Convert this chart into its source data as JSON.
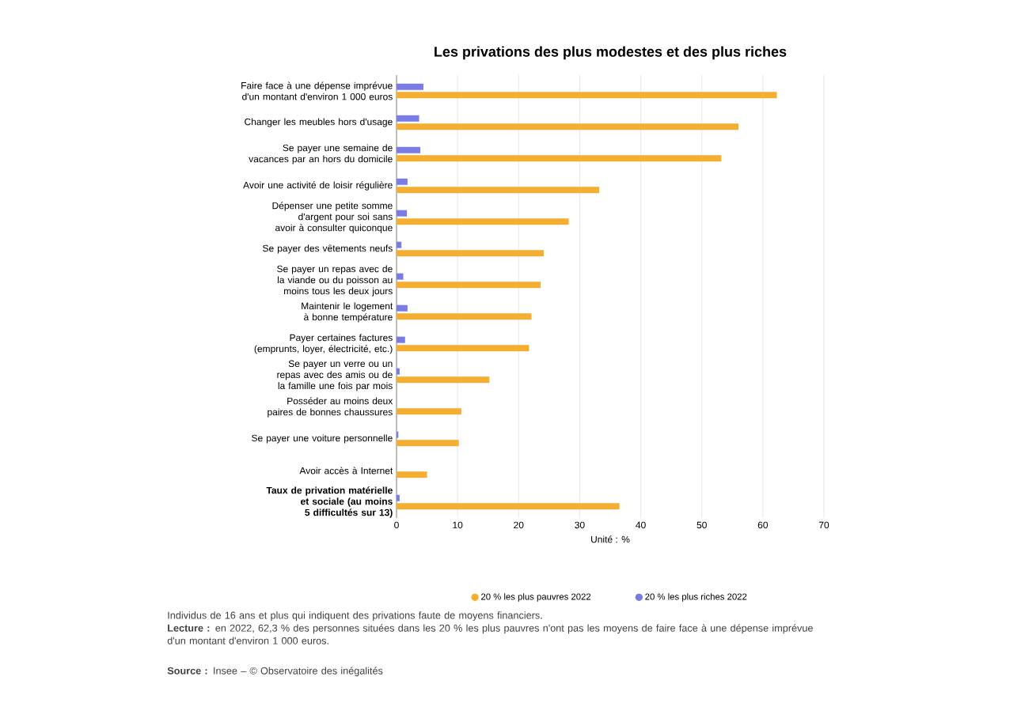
{
  "chart_data": {
    "type": "bar",
    "orientation": "horizontal",
    "title": "Les privations des plus modestes et des plus riches",
    "xlabel": "Unité : %",
    "categories": [
      "Faire face à une dépense imprévue d'un montant d'environ 1 000 euros",
      "Changer les meubles hors d'usage",
      "Se payer une semaine de vacances par an hors du domicile",
      "Avoir une activité de loisir régulière",
      "Dépenser une petite somme d'argent pour soi sans avoir à consulter quiconque",
      "Se payer des vêtements neufs",
      "Se payer un repas avec de la viande ou du poisson au moins tous les deux jours",
      "Maintenir le logement à bonne température",
      "Payer certaines factures (emprunts, loyer, électricité, etc.)",
      "Se payer un verre ou un repas avec des amis ou de la famille une fois par mois",
      "Posséder au moins deux paires de bonnes chaussures",
      "Se payer une voiture personnelle",
      "Avoir accès à Internet",
      "**Taux de privation matérielle et sociale (au moins 5 difficultés sur 13)**"
    ],
    "series": [
      {
        "name": "20 % les plus pauvres 2022",
        "color": "#f4ae32",
        "values": [
          62.3,
          56.0,
          53.2,
          33.2,
          28.2,
          24.1,
          23.6,
          22.1,
          21.7,
          15.2,
          10.6,
          10.2,
          5.0,
          36.5
        ]
      },
      {
        "name": "20 % les plus riches 2022",
        "color": "#7b7be6",
        "values": [
          4.4,
          3.7,
          3.9,
          1.8,
          1.7,
          0.8,
          1.1,
          1.8,
          1.4,
          0.5,
          null,
          0.3,
          null,
          0.5
        ]
      }
    ],
    "xlim": [
      0,
      70
    ],
    "xticks": [
      0,
      10,
      20,
      30,
      40,
      50,
      60,
      70
    ],
    "grid": "x",
    "legend": "bottom",
    "annotations": [
      "Individus de 16 ans et plus qui indiquent des privations faute de moyens financiers.",
      "**Lecture :** en 2022, 62,3 % des personnes situées dans les 20 % les plus pauvres n'ont pas les moyens de faire face à une dépense imprévue d'un montant d'environ 1 000 euros.",
      "**Source :** Insee – © Observatoire des inégalités"
    ]
  }
}
